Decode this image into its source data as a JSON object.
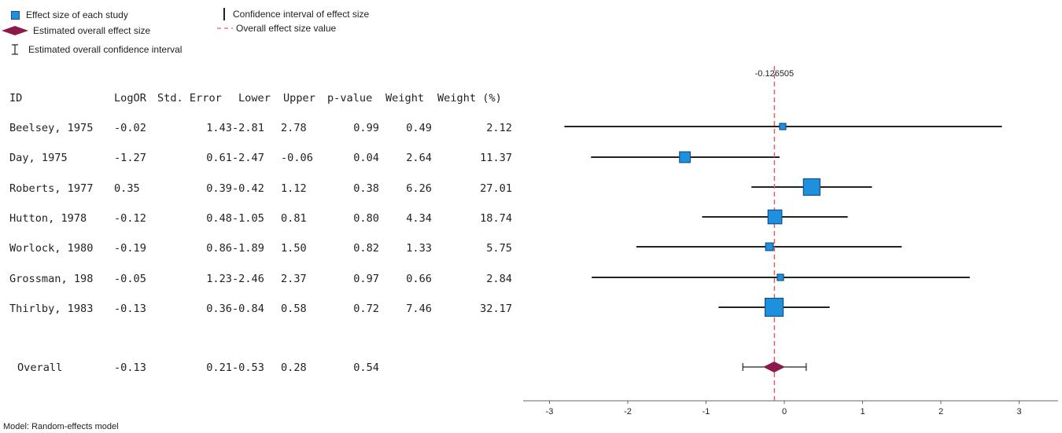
{
  "legend": {
    "effect_size": "Effect size of each study",
    "overall_effect": "Estimated overall effect size",
    "overall_ci": "Estimated overall confidence interval",
    "ci": "Confidence interval of effect size",
    "overall_value": "Overall effect size value"
  },
  "table": {
    "headers": [
      "ID",
      "LogOR",
      "Std. Error",
      "Lower",
      "Upper",
      "p-value",
      "Weight",
      "Weight (%)"
    ],
    "rows": [
      {
        "id": "Beelsey, 1975",
        "logor": "-0.02",
        "se": "1.43",
        "lower": "-2.81",
        "upper": "2.78",
        "p": "0.99",
        "weight": "0.49",
        "weight_pct": "2.12"
      },
      {
        "id": "Day, 1975",
        "logor": "-1.27",
        "se": "0.61",
        "lower": "-2.47",
        "upper": "-0.06",
        "p": "0.04",
        "weight": "2.64",
        "weight_pct": "11.37"
      },
      {
        "id": "Roberts, 1977",
        "logor": "0.35",
        "se": "0.39",
        "lower": "-0.42",
        "upper": "1.12",
        "p": "0.38",
        "weight": "6.26",
        "weight_pct": "27.01"
      },
      {
        "id": "Hutton, 1978",
        "logor": "-0.12",
        "se": "0.48",
        "lower": "-1.05",
        "upper": "0.81",
        "p": "0.80",
        "weight": "4.34",
        "weight_pct": "18.74"
      },
      {
        "id": "Worlock, 1980",
        "logor": "-0.19",
        "se": "0.86",
        "lower": "-1.89",
        "upper": "1.50",
        "p": "0.82",
        "weight": "1.33",
        "weight_pct": "5.75"
      },
      {
        "id": "Grossman, 198",
        "logor": "-0.05",
        "se": "1.23",
        "lower": "-2.46",
        "upper": "2.37",
        "p": "0.97",
        "weight": "0.66",
        "weight_pct": "2.84"
      },
      {
        "id": "Thirlby, 1983",
        "logor": "-0.13",
        "se": "0.36",
        "lower": "-0.84",
        "upper": "0.58",
        "p": "0.72",
        "weight": "7.46",
        "weight_pct": "32.17"
      }
    ],
    "overall": {
      "id": "Overall",
      "logor": "-0.13",
      "se": "0.21",
      "lower": "-0.53",
      "upper": "0.28",
      "p": "0.54"
    }
  },
  "footer": "Model: Random-effects model",
  "chart_data": {
    "type": "scatter",
    "subtype": "forest-plot",
    "overall_value_label": "-0.126505",
    "overall_value": -0.126505,
    "xlim": [
      -3.3,
      3.5
    ],
    "xticks": [
      -3,
      -2,
      -1,
      0,
      1,
      2,
      3
    ],
    "studies": [
      {
        "id": "Beelsey, 1975",
        "estimate": -0.02,
        "lower": -2.81,
        "upper": 2.78,
        "weight_pct": 2.12
      },
      {
        "id": "Day, 1975",
        "estimate": -1.27,
        "lower": -2.47,
        "upper": -0.06,
        "weight_pct": 11.37
      },
      {
        "id": "Roberts, 1977",
        "estimate": 0.35,
        "lower": -0.42,
        "upper": 1.12,
        "weight_pct": 27.01
      },
      {
        "id": "Hutton, 1978",
        "estimate": -0.12,
        "lower": -1.05,
        "upper": 0.81,
        "weight_pct": 18.74
      },
      {
        "id": "Worlock, 1980",
        "estimate": -0.19,
        "lower": -1.89,
        "upper": 1.5,
        "weight_pct": 5.75
      },
      {
        "id": "Grossman, 198",
        "estimate": -0.05,
        "lower": -2.46,
        "upper": 2.37,
        "weight_pct": 2.84
      },
      {
        "id": "Thirlby, 1983",
        "estimate": -0.13,
        "lower": -0.84,
        "upper": 0.58,
        "weight_pct": 32.17
      }
    ],
    "overall": {
      "estimate": -0.13,
      "lower": -0.53,
      "upper": 0.28
    },
    "colors": {
      "box": "#1e90e0",
      "box_border": "#1a4f80",
      "diamond": "#8b1a4a",
      "ref_line": "#e06060",
      "ci_line": "#222222"
    }
  }
}
